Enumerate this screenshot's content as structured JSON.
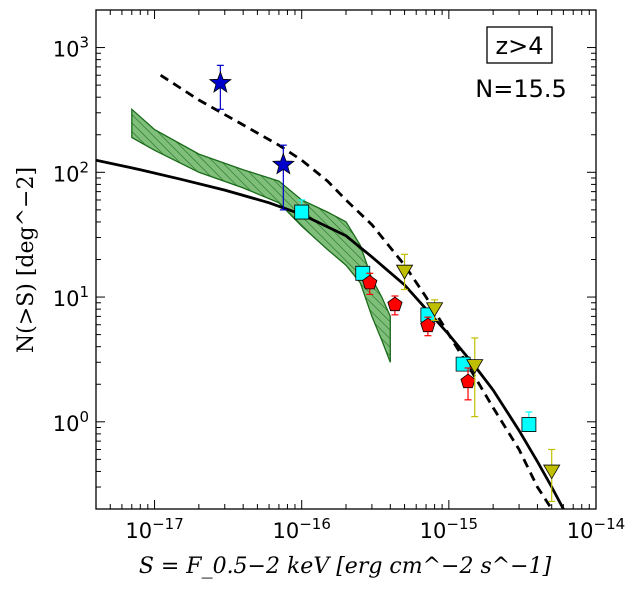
{
  "chart_data": {
    "type": "scatter",
    "xscale": "log",
    "yscale": "log",
    "xlim": [
      4e-18,
      1e-14
    ],
    "ylim": [
      0.2,
      2000
    ],
    "xlabel": "S = F_0.5−2 keV [erg cm^−2 s^−1]",
    "ylabel": "N(>S) [deg^−2]",
    "x_ticks": [
      {
        "value": 1e-17,
        "base": "10",
        "exp": "−17"
      },
      {
        "value": 1e-16,
        "base": "10",
        "exp": "−16"
      },
      {
        "value": 1e-15,
        "base": "10",
        "exp": "−15"
      },
      {
        "value": 1e-14,
        "base": "10",
        "exp": "−14"
      }
    ],
    "y_ticks": [
      {
        "value": 1,
        "base": "10",
        "exp": "0"
      },
      {
        "value": 10,
        "base": "10",
        "exp": "1"
      },
      {
        "value": 100,
        "base": "10",
        "exp": "2"
      },
      {
        "value": 1000,
        "base": "10",
        "exp": "3"
      }
    ],
    "annotations": {
      "redshift_label": "z>4",
      "n_label": "N=15.5"
    },
    "band": {
      "name": "green-hatched-band",
      "color": "#7fbf7b",
      "edge": "#1a6b1a",
      "x": [
        7e-18,
        1e-17,
        2e-17,
        4e-17,
        7e-17,
        1e-16,
        1.5e-16,
        2e-16,
        2.5e-16,
        3e-16,
        3.5e-16,
        4e-16
      ],
      "upper": [
        320,
        220,
        140,
        105,
        85,
        60,
        48,
        40,
        26,
        14,
        10,
        7
      ],
      "lower": [
        190,
        150,
        100,
        75,
        57,
        37,
        24,
        18,
        13,
        7,
        4.5,
        3
      ]
    },
    "solid_model": {
      "name": "solid-model",
      "color": "#000000",
      "x": [
        4e-18,
        8e-18,
        1.5e-17,
        3e-17,
        6e-17,
        1e-16,
        2e-16,
        3e-16,
        5e-16,
        7e-16,
        1e-15,
        1.5e-15,
        2e-15,
        3e-15,
        4e-15,
        5e-15,
        6e-15
      ],
      "y": [
        125,
        105,
        88,
        72,
        57,
        46,
        31,
        21,
        12.5,
        8,
        5,
        2.8,
        1.8,
        0.85,
        0.48,
        0.3,
        0.2
      ]
    },
    "dashed_model": {
      "name": "dashed-model",
      "color": "#000000",
      "x": [
        1.1e-17,
        2e-17,
        4e-17,
        7e-17,
        1e-16,
        1.5e-16,
        2e-16,
        3e-16,
        5e-16,
        7e-16,
        1e-15,
        1.5e-15,
        2e-15,
        3e-15,
        4e-15,
        5e-15
      ],
      "y": [
        600,
        380,
        240,
        165,
        125,
        85,
        60,
        38,
        18,
        10,
        5,
        2.3,
        1.3,
        0.6,
        0.3,
        0.2
      ]
    },
    "series": [
      {
        "name": "stars",
        "marker": "star",
        "color": "#0000cd",
        "points": [
          {
            "x": 2.8e-17,
            "y": 520,
            "lo": 320,
            "hi": 720
          },
          {
            "x": 7.5e-17,
            "y": 115,
            "lo": 50,
            "hi": 165
          }
        ]
      },
      {
        "name": "squares",
        "marker": "square",
        "color": "#00ffff",
        "points": [
          {
            "x": 1e-16,
            "y": 48,
            "lo": 43,
            "hi": 60
          },
          {
            "x": 2.6e-16,
            "y": 15.5,
            "lo": 14,
            "hi": 17
          },
          {
            "x": 7.2e-16,
            "y": 7.2,
            "lo": 6.4,
            "hi": 8
          },
          {
            "x": 1.25e-15,
            "y": 2.9,
            "lo": 2.6,
            "hi": 3.2
          },
          {
            "x": 3.5e-15,
            "y": 0.95,
            "lo": 0.85,
            "hi": 1.2
          }
        ]
      },
      {
        "name": "pentagons",
        "marker": "pentagon",
        "color": "#ff0000",
        "points": [
          {
            "x": 2.9e-16,
            "y": 13,
            "lo": 10.5,
            "hi": 15.5
          },
          {
            "x": 4.3e-16,
            "y": 8.7,
            "lo": 7.2,
            "hi": 10.2
          },
          {
            "x": 7.2e-16,
            "y": 5.9,
            "lo": 4.9,
            "hi": 6.9
          },
          {
            "x": 1.35e-15,
            "y": 2.1,
            "lo": 1.5,
            "hi": 2.7
          }
        ]
      },
      {
        "name": "triangles",
        "marker": "triangle-down",
        "color": "#bfbf00",
        "points": [
          {
            "x": 5e-16,
            "y": 16,
            "lo": 11.5,
            "hi": 22
          },
          {
            "x": 8e-16,
            "y": 8,
            "lo": 6.5,
            "hi": 9.5
          },
          {
            "x": 1.5e-15,
            "y": 2.8,
            "lo": 1.1,
            "hi": 4.7
          },
          {
            "x": 5e-15,
            "y": 0.4,
            "lo": 0.23,
            "hi": 0.6
          }
        ]
      }
    ]
  }
}
